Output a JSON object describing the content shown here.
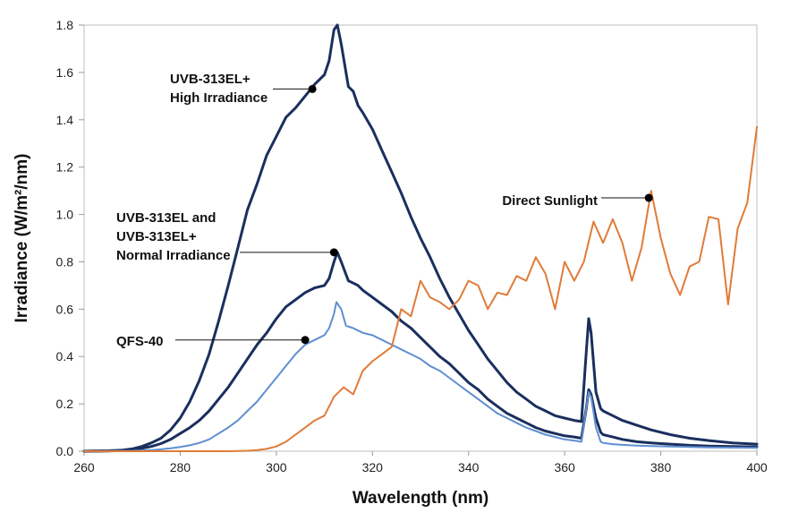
{
  "chart_data": {
    "type": "line",
    "xlabel": "Wavelength (nm)",
    "ylabel": "Irradiance (W/m²/nm)",
    "xlim": [
      260,
      400
    ],
    "ylim": [
      0.0,
      1.8
    ],
    "xticks": [
      "260",
      "280",
      "300",
      "320",
      "340",
      "360",
      "380",
      "400"
    ],
    "yticks": [
      "0.0",
      "0.2",
      "0.4",
      "0.6",
      "0.8",
      "1.0",
      "1.2",
      "1.4",
      "1.6",
      "1.8"
    ],
    "grid": false,
    "legend": "none",
    "series": [
      {
        "color": "#1b2f5e",
        "points": [
          [
            260,
            0.0
          ],
          [
            265,
            0.002
          ],
          [
            268,
            0.005
          ],
          [
            270,
            0.01
          ],
          [
            272,
            0.02
          ],
          [
            274,
            0.035
          ],
          [
            276,
            0.055
          ],
          [
            278,
            0.09
          ],
          [
            280,
            0.14
          ],
          [
            282,
            0.21
          ],
          [
            284,
            0.3
          ],
          [
            286,
            0.41
          ],
          [
            288,
            0.55
          ],
          [
            290,
            0.7
          ],
          [
            292,
            0.86
          ],
          [
            294,
            1.02
          ],
          [
            296,
            1.13
          ],
          [
            298,
            1.25
          ],
          [
            300,
            1.33
          ],
          [
            302,
            1.41
          ],
          [
            304,
            1.45
          ],
          [
            306,
            1.5
          ],
          [
            308,
            1.55
          ],
          [
            310,
            1.59
          ],
          [
            311,
            1.65
          ],
          [
            312,
            1.78
          ],
          [
            312.7,
            1.8
          ],
          [
            313.5,
            1.72
          ],
          [
            315,
            1.54
          ],
          [
            316,
            1.52
          ],
          [
            317,
            1.46
          ],
          [
            318,
            1.43
          ],
          [
            320,
            1.36
          ],
          [
            322,
            1.27
          ],
          [
            324,
            1.18
          ],
          [
            326,
            1.09
          ],
          [
            328,
            0.99
          ],
          [
            330,
            0.9
          ],
          [
            332,
            0.82
          ],
          [
            334,
            0.73
          ],
          [
            336,
            0.65
          ],
          [
            338,
            0.58
          ],
          [
            340,
            0.51
          ],
          [
            342,
            0.45
          ],
          [
            344,
            0.39
          ],
          [
            346,
            0.34
          ],
          [
            348,
            0.29
          ],
          [
            350,
            0.25
          ],
          [
            352,
            0.22
          ],
          [
            354,
            0.19
          ],
          [
            356,
            0.17
          ],
          [
            358,
            0.15
          ],
          [
            360,
            0.14
          ],
          [
            362,
            0.13
          ],
          [
            363.5,
            0.125
          ],
          [
            364.5,
            0.42
          ],
          [
            365,
            0.56
          ],
          [
            365.5,
            0.5
          ],
          [
            366.5,
            0.25
          ],
          [
            367.5,
            0.18
          ],
          [
            368,
            0.17
          ],
          [
            370,
            0.15
          ],
          [
            372,
            0.13
          ],
          [
            375,
            0.11
          ],
          [
            378,
            0.09
          ],
          [
            382,
            0.07
          ],
          [
            386,
            0.055
          ],
          [
            390,
            0.045
          ],
          [
            395,
            0.035
          ],
          [
            400,
            0.03
          ]
        ]
      },
      {
        "color": "#1b2f5e",
        "points": [
          [
            260,
            0.0
          ],
          [
            265,
            0.001
          ],
          [
            268,
            0.003
          ],
          [
            270,
            0.006
          ],
          [
            272,
            0.012
          ],
          [
            274,
            0.02
          ],
          [
            276,
            0.032
          ],
          [
            278,
            0.05
          ],
          [
            280,
            0.075
          ],
          [
            282,
            0.1
          ],
          [
            284,
            0.13
          ],
          [
            286,
            0.17
          ],
          [
            288,
            0.22
          ],
          [
            290,
            0.27
          ],
          [
            292,
            0.33
          ],
          [
            294,
            0.39
          ],
          [
            296,
            0.45
          ],
          [
            298,
            0.5
          ],
          [
            300,
            0.56
          ],
          [
            302,
            0.61
          ],
          [
            304,
            0.64
          ],
          [
            306,
            0.67
          ],
          [
            308,
            0.69
          ],
          [
            310,
            0.7
          ],
          [
            311,
            0.73
          ],
          [
            312,
            0.8
          ],
          [
            312.7,
            0.84
          ],
          [
            313.5,
            0.8
          ],
          [
            315,
            0.72
          ],
          [
            316,
            0.71
          ],
          [
            317,
            0.7
          ],
          [
            318,
            0.68
          ],
          [
            320,
            0.65
          ],
          [
            322,
            0.62
          ],
          [
            324,
            0.59
          ],
          [
            326,
            0.55
          ],
          [
            328,
            0.52
          ],
          [
            330,
            0.48
          ],
          [
            332,
            0.44
          ],
          [
            334,
            0.4
          ],
          [
            336,
            0.37
          ],
          [
            338,
            0.33
          ],
          [
            340,
            0.29
          ],
          [
            342,
            0.26
          ],
          [
            344,
            0.22
          ],
          [
            346,
            0.19
          ],
          [
            348,
            0.16
          ],
          [
            350,
            0.14
          ],
          [
            352,
            0.12
          ],
          [
            354,
            0.1
          ],
          [
            356,
            0.085
          ],
          [
            358,
            0.075
          ],
          [
            360,
            0.065
          ],
          [
            362,
            0.06
          ],
          [
            363.5,
            0.055
          ],
          [
            364.5,
            0.18
          ],
          [
            365,
            0.26
          ],
          [
            365.5,
            0.24
          ],
          [
            366.5,
            0.14
          ],
          [
            367.5,
            0.08
          ],
          [
            368,
            0.07
          ],
          [
            370,
            0.06
          ],
          [
            372,
            0.05
          ],
          [
            375,
            0.04
          ],
          [
            378,
            0.035
          ],
          [
            382,
            0.03
          ],
          [
            386,
            0.025
          ],
          [
            390,
            0.022
          ],
          [
            395,
            0.02
          ],
          [
            400,
            0.018
          ]
        ]
      },
      {
        "color": "#5f8fd0",
        "points": [
          [
            260,
            0.0
          ],
          [
            265,
            0.001
          ],
          [
            270,
            0.002
          ],
          [
            274,
            0.005
          ],
          [
            276,
            0.008
          ],
          [
            278,
            0.012
          ],
          [
            280,
            0.018
          ],
          [
            282,
            0.025
          ],
          [
            284,
            0.035
          ],
          [
            286,
            0.05
          ],
          [
            288,
            0.075
          ],
          [
            290,
            0.1
          ],
          [
            292,
            0.13
          ],
          [
            294,
            0.17
          ],
          [
            296,
            0.21
          ],
          [
            298,
            0.26
          ],
          [
            300,
            0.31
          ],
          [
            302,
            0.36
          ],
          [
            304,
            0.41
          ],
          [
            306,
            0.45
          ],
          [
            308,
            0.47
          ],
          [
            310,
            0.49
          ],
          [
            311,
            0.52
          ],
          [
            312,
            0.58
          ],
          [
            312.5,
            0.63
          ],
          [
            313.5,
            0.6
          ],
          [
            314.5,
            0.53
          ],
          [
            316,
            0.52
          ],
          [
            318,
            0.5
          ],
          [
            320,
            0.49
          ],
          [
            322,
            0.47
          ],
          [
            324,
            0.45
          ],
          [
            326,
            0.43
          ],
          [
            328,
            0.41
          ],
          [
            330,
            0.39
          ],
          [
            332,
            0.36
          ],
          [
            334,
            0.34
          ],
          [
            336,
            0.31
          ],
          [
            338,
            0.28
          ],
          [
            340,
            0.25
          ],
          [
            342,
            0.22
          ],
          [
            344,
            0.19
          ],
          [
            346,
            0.16
          ],
          [
            348,
            0.14
          ],
          [
            350,
            0.12
          ],
          [
            352,
            0.1
          ],
          [
            354,
            0.085
          ],
          [
            356,
            0.07
          ],
          [
            358,
            0.06
          ],
          [
            360,
            0.05
          ],
          [
            362,
            0.045
          ],
          [
            363.5,
            0.04
          ],
          [
            364.5,
            0.18
          ],
          [
            365,
            0.25
          ],
          [
            365.5,
            0.23
          ],
          [
            366.5,
            0.1
          ],
          [
            367.5,
            0.04
          ],
          [
            368,
            0.035
          ],
          [
            370,
            0.03
          ],
          [
            372,
            0.027
          ],
          [
            375,
            0.024
          ],
          [
            378,
            0.022
          ],
          [
            382,
            0.02
          ],
          [
            386,
            0.018
          ],
          [
            390,
            0.016
          ],
          [
            395,
            0.015
          ],
          [
            400,
            0.014
          ]
        ]
      },
      {
        "color": "#e07b39",
        "points": [
          [
            260,
            0.0
          ],
          [
            290,
            0.0
          ],
          [
            294,
            0.002
          ],
          [
            296,
            0.005
          ],
          [
            298,
            0.01
          ],
          [
            300,
            0.02
          ],
          [
            302,
            0.04
          ],
          [
            304,
            0.07
          ],
          [
            306,
            0.1
          ],
          [
            308,
            0.13
          ],
          [
            310,
            0.15
          ],
          [
            312,
            0.23
          ],
          [
            314,
            0.27
          ],
          [
            316,
            0.24
          ],
          [
            318,
            0.34
          ],
          [
            320,
            0.38
          ],
          [
            322,
            0.41
          ],
          [
            324,
            0.44
          ],
          [
            326,
            0.6
          ],
          [
            328,
            0.57
          ],
          [
            330,
            0.72
          ],
          [
            332,
            0.65
          ],
          [
            334,
            0.63
          ],
          [
            336,
            0.6
          ],
          [
            338,
            0.64
          ],
          [
            340,
            0.72
          ],
          [
            342,
            0.7
          ],
          [
            344,
            0.6
          ],
          [
            346,
            0.67
          ],
          [
            348,
            0.66
          ],
          [
            350,
            0.74
          ],
          [
            352,
            0.72
          ],
          [
            354,
            0.82
          ],
          [
            356,
            0.75
          ],
          [
            358,
            0.6
          ],
          [
            360,
            0.8
          ],
          [
            362,
            0.72
          ],
          [
            364,
            0.8
          ],
          [
            366,
            0.97
          ],
          [
            368,
            0.88
          ],
          [
            370,
            0.98
          ],
          [
            372,
            0.88
          ],
          [
            374,
            0.72
          ],
          [
            376,
            0.86
          ],
          [
            378,
            1.1
          ],
          [
            380,
            0.9
          ],
          [
            382,
            0.75
          ],
          [
            384,
            0.66
          ],
          [
            386,
            0.78
          ],
          [
            388,
            0.8
          ],
          [
            390,
            0.99
          ],
          [
            392,
            0.98
          ],
          [
            394,
            0.62
          ],
          [
            396,
            0.94
          ],
          [
            398,
            1.05
          ],
          [
            400,
            1.37
          ]
        ]
      }
    ],
    "annotations": [
      {
        "lines": [
          "UVB-313EL+",
          "High Irradiance"
        ],
        "x": 307.5,
        "y": 1.53
      },
      {
        "lines": [
          "UVB-313EL and",
          "UVB-313EL+",
          "Normal Irradiance"
        ],
        "x": 312,
        "y": 0.84
      },
      {
        "lines": [
          "QFS-40"
        ],
        "x": 306,
        "y": 0.47
      },
      {
        "lines": [
          "Direct Sunlight"
        ],
        "x": 377.5,
        "y": 1.07
      }
    ]
  }
}
